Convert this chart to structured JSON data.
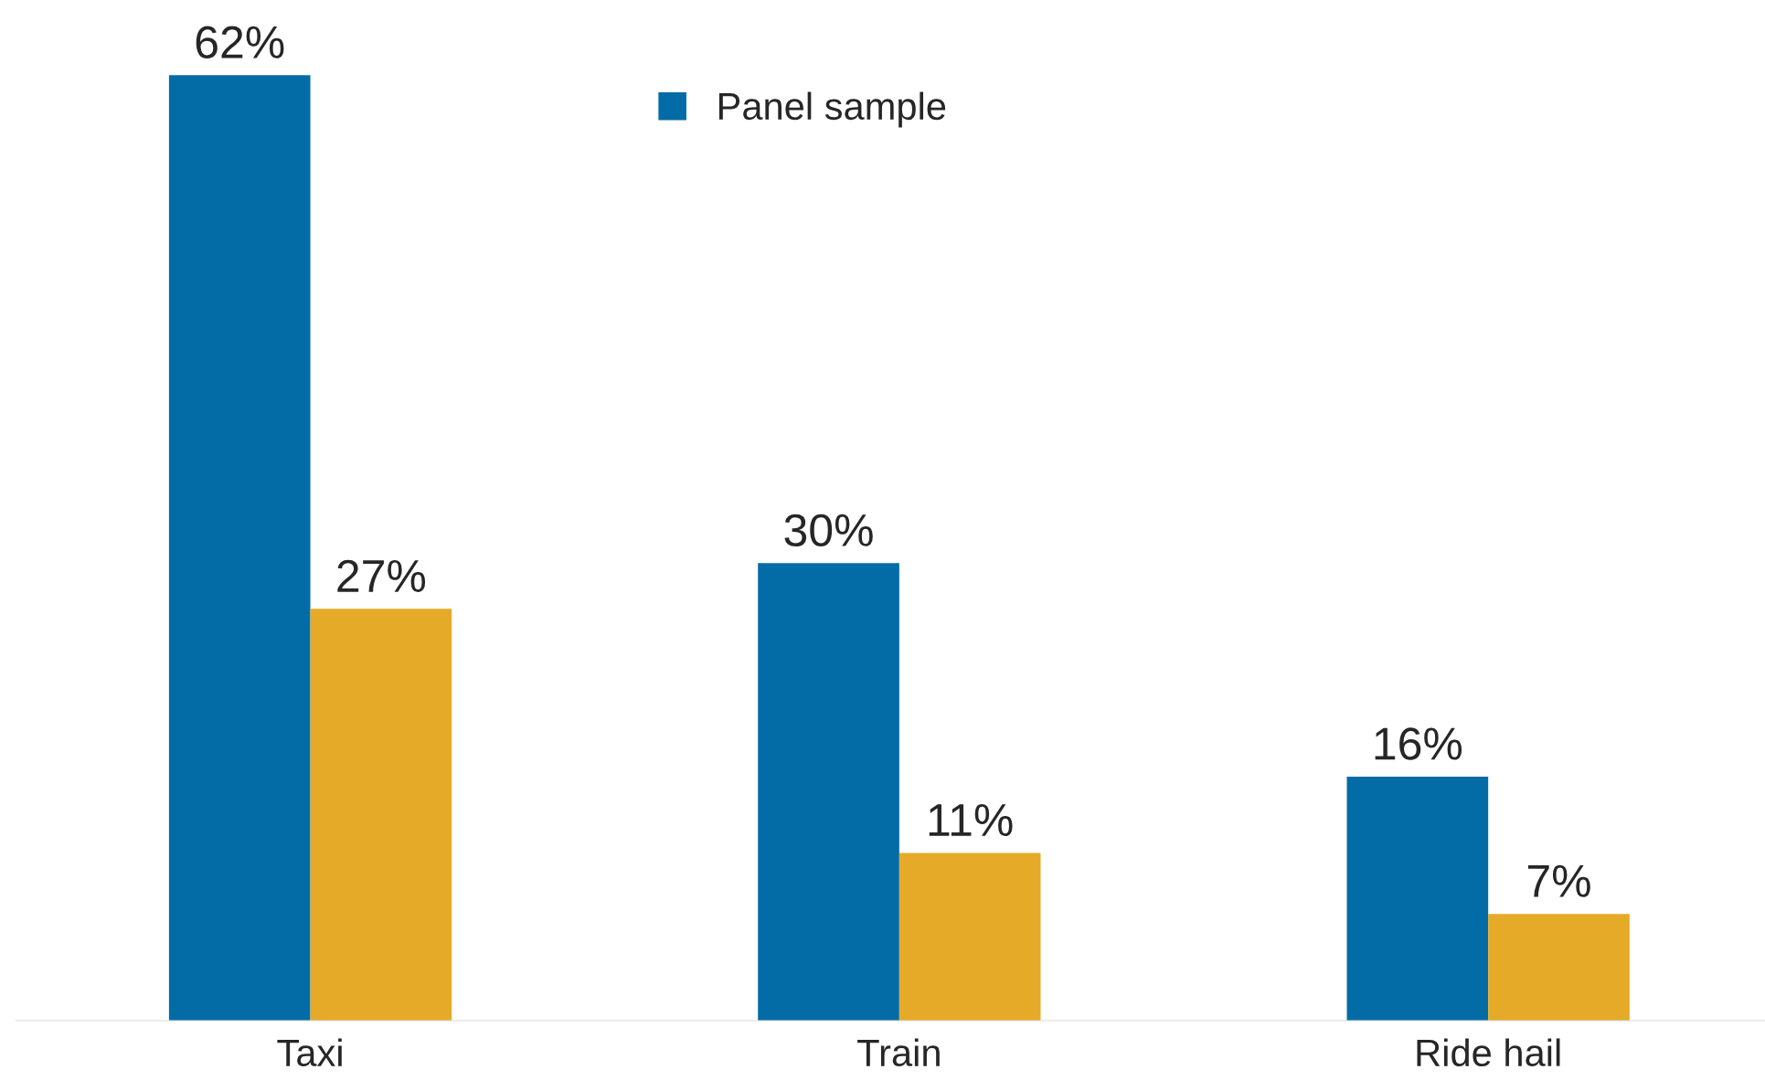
{
  "chart_data": {
    "type": "bar",
    "categories": [
      "Taxi",
      "Train",
      "Ride hail"
    ],
    "series": [
      {
        "name": "Panel sample",
        "color": "#036ca6",
        "values": [
          62,
          30,
          16
        ],
        "value_labels": [
          "62%",
          "30%",
          "16%"
        ]
      },
      {
        "color": "#e5aa27",
        "values": [
          27,
          11,
          7
        ],
        "value_labels": [
          "27%",
          "11%",
          "7%"
        ]
      }
    ],
    "legend": "top",
    "grid": false
  }
}
